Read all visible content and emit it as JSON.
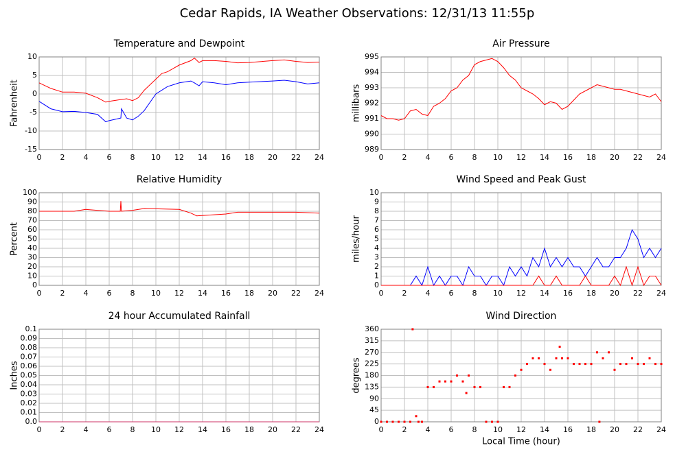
{
  "title": "Cedar Rapids, IA Weather Observations: 12/31/13 11:55p",
  "chart_data": [
    {
      "type": "line",
      "title": "Temperature and Dewpoint",
      "y_label": "Fahrenheit",
      "x": [
        0,
        1,
        2,
        3,
        4,
        5,
        5.7,
        6,
        7,
        7.05,
        7.5,
        8,
        8.5,
        9,
        10,
        10.5,
        11,
        12,
        13,
        13.3,
        13.7,
        14,
        15,
        16,
        17,
        18,
        20,
        21,
        22,
        23,
        24
      ],
      "series": [
        {
          "name": "Temperature",
          "color": "#ff0000",
          "values": [
            3,
            1.5,
            0.5,
            0.5,
            0.2,
            -1,
            -2.2,
            -2,
            -1.5,
            -1.5,
            -1.3,
            -1.8,
            -1,
            1,
            4,
            5.5,
            6,
            7.8,
            9,
            9.7,
            8.5,
            9,
            9,
            8.8,
            8.4,
            8.5,
            9,
            9.2,
            8.8,
            8.5,
            8.6
          ]
        },
        {
          "name": "Dewpoint",
          "color": "#0000ff",
          "values": [
            -2,
            -4,
            -4.8,
            -4.7,
            -5,
            -5.5,
            -7.5,
            -7.2,
            -6.5,
            -4,
            -6.5,
            -7,
            -6,
            -4.5,
            0,
            1,
            2,
            3,
            3.5,
            3,
            2.2,
            3.3,
            3,
            2.5,
            3,
            3.2,
            3.5,
            3.7,
            3.3,
            2.7,
            3
          ]
        }
      ],
      "xlim": [
        0,
        24
      ],
      "xticks": [
        0,
        2,
        4,
        6,
        8,
        10,
        12,
        14,
        16,
        18,
        20,
        22,
        24
      ],
      "ylim": [
        -15,
        10
      ],
      "yticks": [
        -15,
        -10,
        -5,
        0,
        5,
        10
      ],
      "grid": true
    },
    {
      "type": "line",
      "title": "Air Pressure",
      "y_label": "millibars",
      "x": [
        0,
        0.5,
        1,
        1.5,
        2,
        2.5,
        3,
        3.5,
        4,
        4.5,
        5,
        5.5,
        6,
        6.5,
        7,
        7.5,
        8,
        8.5,
        9,
        9.5,
        10,
        10.5,
        11,
        11.5,
        12,
        12.5,
        13,
        13.5,
        14,
        14.5,
        15,
        15.5,
        16,
        16.5,
        17,
        17.5,
        18,
        18.5,
        19,
        19.5,
        20,
        20.5,
        21,
        21.5,
        22,
        22.5,
        23,
        23.5,
        24
      ],
      "series": [
        {
          "name": "Pressure",
          "color": "#ff0000",
          "values": [
            991.2,
            991,
            991,
            990.9,
            991,
            991.5,
            991.6,
            991.3,
            991.2,
            991.8,
            992,
            992.3,
            992.8,
            993,
            993.5,
            993.8,
            994.5,
            994.7,
            994.8,
            994.9,
            994.7,
            994.3,
            993.8,
            993.5,
            993,
            992.8,
            992.6,
            992.3,
            991.9,
            992.1,
            992,
            991.6,
            991.8,
            992.2,
            992.6,
            992.8,
            993,
            993.2,
            993.1,
            993,
            992.9,
            992.9,
            992.8,
            992.7,
            992.6,
            992.5,
            992.4,
            992.6,
            992.1
          ]
        }
      ],
      "xlim": [
        0,
        24
      ],
      "xticks": [
        0,
        2,
        4,
        6,
        8,
        10,
        12,
        14,
        16,
        18,
        20,
        22,
        24
      ],
      "ylim": [
        989,
        995
      ],
      "yticks": [
        989,
        990,
        991,
        992,
        993,
        994,
        995
      ],
      "grid": true
    },
    {
      "type": "line",
      "title": "Relative Humidity",
      "y_label": "Percent",
      "x": [
        0,
        3,
        4,
        6,
        6.95,
        7,
        7.05,
        8,
        9,
        12,
        13,
        13.5,
        16,
        17,
        22,
        24
      ],
      "series": [
        {
          "name": "Humidity",
          "color": "#ff0000",
          "values": [
            80,
            80,
            82,
            80,
            80,
            91,
            80,
            81,
            83,
            82,
            78,
            75,
            77,
            79,
            79,
            78
          ]
        }
      ],
      "xlim": [
        0,
        24
      ],
      "xticks": [
        0,
        2,
        4,
        6,
        8,
        10,
        12,
        14,
        16,
        18,
        20,
        22,
        24
      ],
      "ylim": [
        0,
        100
      ],
      "yticks": [
        0,
        10,
        20,
        30,
        40,
        50,
        60,
        70,
        80,
        90,
        100
      ],
      "grid": true
    },
    {
      "type": "line",
      "title": "Wind Speed and Peak Gust",
      "y_label": "miles/hour",
      "x": [
        0,
        0.5,
        1,
        1.5,
        2,
        2.5,
        3,
        3.5,
        4,
        4.5,
        5,
        5.5,
        6,
        6.5,
        7,
        7.5,
        8,
        8.5,
        9,
        9.5,
        10,
        10.5,
        11,
        11.5,
        12,
        12.5,
        13,
        13.5,
        14,
        14.5,
        15,
        15.5,
        16,
        16.5,
        17,
        17.5,
        18,
        18.5,
        19,
        19.5,
        20,
        20.5,
        21,
        21.5,
        22,
        22.5,
        23,
        23.5,
        24
      ],
      "series": [
        {
          "name": "Wind Speed",
          "color": "#0000ff",
          "values": [
            0,
            0,
            0,
            0,
            0,
            0,
            1,
            0,
            2,
            0,
            1,
            0,
            1,
            1,
            0,
            2,
            1,
            1,
            0,
            1,
            1,
            0,
            2,
            1,
            2,
            1,
            3,
            2,
            4,
            2,
            3,
            2,
            3,
            2,
            2,
            1,
            2,
            3,
            2,
            2,
            3,
            3,
            4,
            6,
            5,
            3,
            4,
            3,
            4
          ]
        },
        {
          "name": "Peak Gust",
          "color": "#ff0000",
          "values": [
            0,
            0,
            0,
            0,
            0,
            0,
            0,
            0,
            0,
            0,
            0,
            0,
            0,
            0,
            0,
            0,
            0,
            0,
            0,
            0,
            0,
            0,
            0,
            0,
            0,
            0,
            0,
            1,
            0,
            0,
            1,
            0,
            0,
            0,
            0,
            1,
            0,
            0,
            0,
            0,
            1,
            0,
            2,
            0,
            2,
            0,
            1,
            1,
            0
          ]
        }
      ],
      "xlim": [
        0,
        24
      ],
      "xticks": [
        0,
        2,
        4,
        6,
        8,
        10,
        12,
        14,
        16,
        18,
        20,
        22,
        24
      ],
      "ylim": [
        0,
        10
      ],
      "yticks": [
        0,
        1,
        2,
        3,
        4,
        5,
        6,
        7,
        8,
        9,
        10
      ],
      "grid": true
    },
    {
      "type": "line",
      "title": "24 hour Accumulated Rainfall",
      "y_label": "Inches",
      "x": [
        0,
        24
      ],
      "series": [
        {
          "name": "Rainfall",
          "color": "#cc3366",
          "values": [
            0,
            0
          ]
        }
      ],
      "xlim": [
        0,
        24
      ],
      "xticks": [
        0,
        2,
        4,
        6,
        8,
        10,
        12,
        14,
        16,
        18,
        20,
        22,
        24
      ],
      "ylim": [
        0,
        0.1
      ],
      "yticks": [
        {
          "value": 0,
          "label": "0.0"
        },
        0.01,
        0.02,
        0.03,
        0.04,
        0.05,
        0.06,
        0.07,
        0.08,
        0.09,
        0.1
      ],
      "grid": true
    },
    {
      "type": "scatter",
      "title": "Wind Direction",
      "y_label": "degrees",
      "x_label": "Local Time (hour)",
      "x": [
        0,
        0.5,
        1,
        1.5,
        2,
        2.5,
        2.7,
        3,
        3.2,
        3.5,
        4,
        4.5,
        5,
        5.5,
        6,
        6.5,
        7,
        7.3,
        7.5,
        8,
        8.5,
        9,
        9.5,
        10,
        10.5,
        11,
        11.5,
        12,
        12.5,
        13,
        13.5,
        14,
        14.5,
        15,
        15.3,
        15.5,
        16,
        16.5,
        17,
        17.5,
        18,
        18.5,
        18.7,
        19,
        19.5,
        20,
        20.5,
        21,
        21.5,
        22,
        22.5,
        23,
        23.5,
        24
      ],
      "series": [
        {
          "name": "Direction",
          "color": "#ff0000",
          "values": [
            0,
            0,
            0,
            0,
            0,
            0,
            360,
            22,
            0,
            0,
            135,
            135,
            157,
            157,
            157,
            180,
            157,
            112,
            180,
            135,
            135,
            0,
            0,
            0,
            135,
            135,
            180,
            202,
            225,
            247,
            247,
            225,
            202,
            247,
            292,
            247,
            247,
            225,
            225,
            225,
            225,
            270,
            0,
            247,
            270,
            202,
            225,
            225,
            247,
            225,
            225,
            247,
            225,
            225
          ]
        }
      ],
      "xlim": [
        0,
        24
      ],
      "xticks": [
        0,
        2,
        4,
        6,
        8,
        10,
        12,
        14,
        16,
        18,
        20,
        22,
        24
      ],
      "ylim": [
        0,
        360
      ],
      "yticks": [
        0,
        45,
        90,
        135,
        180,
        225,
        270,
        315,
        360
      ],
      "grid": true
    }
  ]
}
